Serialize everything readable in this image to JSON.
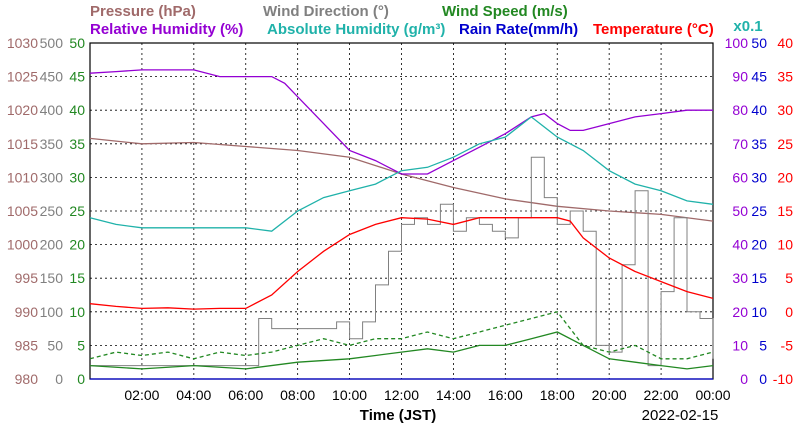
{
  "chart_data": {
    "type": "line",
    "date": "2022-02-15",
    "xlabel": "Time (JST)",
    "x_ticks": [
      "02:00",
      "04:00",
      "06:00",
      "08:00",
      "10:00",
      "12:00",
      "14:00",
      "16:00",
      "18:00",
      "20:00",
      "22:00",
      "00:00"
    ],
    "x_range_hours": [
      0,
      24
    ],
    "grid": true,
    "colors": {
      "pressure": "#a06a6a",
      "wind_direction": "#808080",
      "wind_speed": "#228822",
      "relative_humidity": "#9400d3",
      "absolute_humidity": "#20b2aa",
      "rain_rate": "#0000cd",
      "temperature": "#ff0000"
    },
    "left_axes": [
      {
        "key": "pressure",
        "label": "Pressure (hPa)",
        "ticks": [
          "1030",
          "1025",
          "1020",
          "1015",
          "1010",
          "1005",
          "1000",
          "995",
          "990",
          "985",
          "980"
        ],
        "range": [
          980,
          1030
        ]
      },
      {
        "key": "wind_direction",
        "label": "Wind Direction (°)",
        "ticks": [
          "500",
          "450",
          "400",
          "350",
          "300",
          "250",
          "200",
          "150",
          "100",
          "50",
          "0"
        ],
        "range": [
          0,
          500
        ]
      },
      {
        "key": "wind_speed",
        "label": "Wind Speed (m/s)",
        "ticks": [
          "50",
          "45",
          "40",
          "35",
          "30",
          "25",
          "20",
          "15",
          "10",
          "5",
          "0"
        ],
        "range": [
          0,
          50
        ]
      }
    ],
    "right_axes": [
      {
        "key": "relative_humidity",
        "label": "Relative Humidity (%)",
        "ticks": [
          "100",
          "90",
          "80",
          "70",
          "60",
          "50",
          "40",
          "30",
          "20",
          "10",
          "0"
        ],
        "range": [
          0,
          100
        ]
      },
      {
        "key": "absolute_humidity",
        "label": "Absolute Humidity (g/m³)",
        "scale_note": "x0.1",
        "ticks": [
          "100",
          "90",
          "80",
          "70",
          "60",
          "50",
          "40",
          "30",
          "20",
          "10",
          "0"
        ],
        "range": [
          0,
          100
        ]
      },
      {
        "key": "rain_rate",
        "label": "Rain Rate(mm/h)",
        "ticks": [
          "50",
          "45",
          "40",
          "35",
          "30",
          "25",
          "20",
          "15",
          "10",
          "5",
          "0"
        ],
        "range": [
          0,
          50
        ]
      },
      {
        "key": "temperature",
        "label": "Temperature (°C)",
        "ticks": [
          "40",
          "35",
          "30",
          "25",
          "20",
          "15",
          "10",
          "5",
          "0",
          "-5",
          "-10"
        ],
        "range": [
          -10,
          40
        ]
      }
    ],
    "series": [
      {
        "name": "Pressure (hPa)",
        "axis": "pressure",
        "style": "line",
        "x": [
          0,
          2,
          4,
          6,
          8,
          10,
          12,
          14,
          16,
          18,
          20,
          22,
          24
        ],
        "y": [
          1015.8,
          1015.0,
          1015.2,
          1014.6,
          1014.0,
          1013.0,
          1010.5,
          1008.5,
          1006.8,
          1005.7,
          1005.0,
          1004.5,
          1003.5
        ]
      },
      {
        "name": "Wind Direction (°)",
        "axis": "wind_direction",
        "style": "step",
        "x": [
          0,
          3,
          6,
          6.5,
          7,
          9,
          9.5,
          10,
          10.5,
          11,
          11.5,
          12,
          12.5,
          13,
          13.5,
          14,
          14.5,
          15,
          15.5,
          16,
          16.5,
          17,
          17.5,
          18,
          18.5,
          19,
          19.5,
          20,
          20.5,
          21,
          21.5,
          22,
          22.5,
          23,
          23.5,
          24
        ],
        "y": [
          20,
          20,
          20,
          90,
          75,
          75,
          85,
          60,
          85,
          140,
          190,
          230,
          240,
          230,
          260,
          220,
          240,
          230,
          220,
          210,
          240,
          330,
          270,
          230,
          250,
          220,
          50,
          40,
          170,
          280,
          20,
          130,
          240,
          100,
          90,
          30
        ]
      },
      {
        "name": "Wind Speed (m/s)",
        "axis": "wind_speed",
        "style": "line",
        "x": [
          0,
          2,
          4,
          6,
          8,
          10,
          11,
          12,
          13,
          14,
          15,
          16,
          17,
          18,
          19,
          20,
          21,
          22,
          23,
          24
        ],
        "y": [
          2,
          1.5,
          2,
          1.5,
          2.5,
          3,
          3.5,
          4,
          4.5,
          4,
          5,
          5,
          6,
          7,
          5,
          3,
          2.5,
          2,
          1.5,
          2
        ]
      },
      {
        "name": "Wind Speed gust",
        "axis": "wind_speed",
        "style": "dashed",
        "x": [
          0,
          1,
          2,
          3,
          4,
          5,
          6,
          7,
          8,
          9,
          10,
          11,
          12,
          13,
          14,
          15,
          16,
          17,
          18,
          19,
          20,
          21,
          22,
          23,
          24
        ],
        "y": [
          3,
          4,
          3.5,
          4,
          3,
          4,
          3.5,
          4,
          5,
          6,
          5,
          6,
          6,
          7,
          6,
          7,
          8,
          9,
          10,
          5,
          4,
          5,
          3,
          3,
          4
        ]
      },
      {
        "name": "Relative Humidity (%)",
        "axis": "relative_humidity",
        "style": "line",
        "x": [
          0,
          1,
          2,
          3,
          4,
          5,
          6,
          7,
          7.5,
          8,
          9,
          10,
          11,
          12,
          13,
          14,
          15,
          16,
          17,
          17.5,
          18,
          18.5,
          19,
          20,
          21,
          22,
          23,
          24
        ],
        "y": [
          91,
          91.5,
          92,
          92,
          92,
          90,
          90,
          90,
          88,
          84,
          76,
          68,
          65,
          61,
          61,
          65,
          69,
          73,
          78,
          79,
          76,
          74,
          74,
          76,
          78,
          79,
          80,
          80
        ]
      },
      {
        "name": "Absolute Humidity (g/m³)",
        "axis": "absolute_humidity",
        "style": "line",
        "x": [
          0,
          1,
          2,
          3,
          4,
          5,
          6,
          7,
          8,
          9,
          10,
          11,
          12,
          13,
          14,
          15,
          16,
          17,
          18,
          19,
          20,
          21,
          22,
          23,
          24
        ],
        "y": [
          48,
          46,
          45,
          45,
          45,
          45,
          45,
          44,
          50,
          54,
          56,
          58,
          62,
          63,
          66,
          70,
          72,
          78,
          72,
          68,
          62,
          58,
          56,
          53,
          52
        ]
      },
      {
        "name": "Rain Rate(mm/h)",
        "axis": "rain_rate",
        "style": "line",
        "x": [
          0,
          24
        ],
        "y": [
          0,
          0
        ]
      },
      {
        "name": "Temperature (°C)",
        "axis": "temperature",
        "style": "line",
        "x": [
          0,
          1,
          2,
          3,
          4,
          5,
          6,
          7,
          8,
          9,
          10,
          11,
          12,
          13,
          14,
          15,
          16,
          17,
          18,
          18.5,
          19,
          20,
          21,
          22,
          23,
          24
        ],
        "y": [
          1.2,
          0.8,
          0.5,
          0.6,
          0.4,
          0.5,
          0.5,
          2.5,
          6,
          9,
          11.5,
          13,
          14,
          13.8,
          13,
          14,
          14,
          14,
          14,
          13.5,
          11,
          8,
          6,
          4.5,
          3,
          2
        ]
      }
    ]
  }
}
